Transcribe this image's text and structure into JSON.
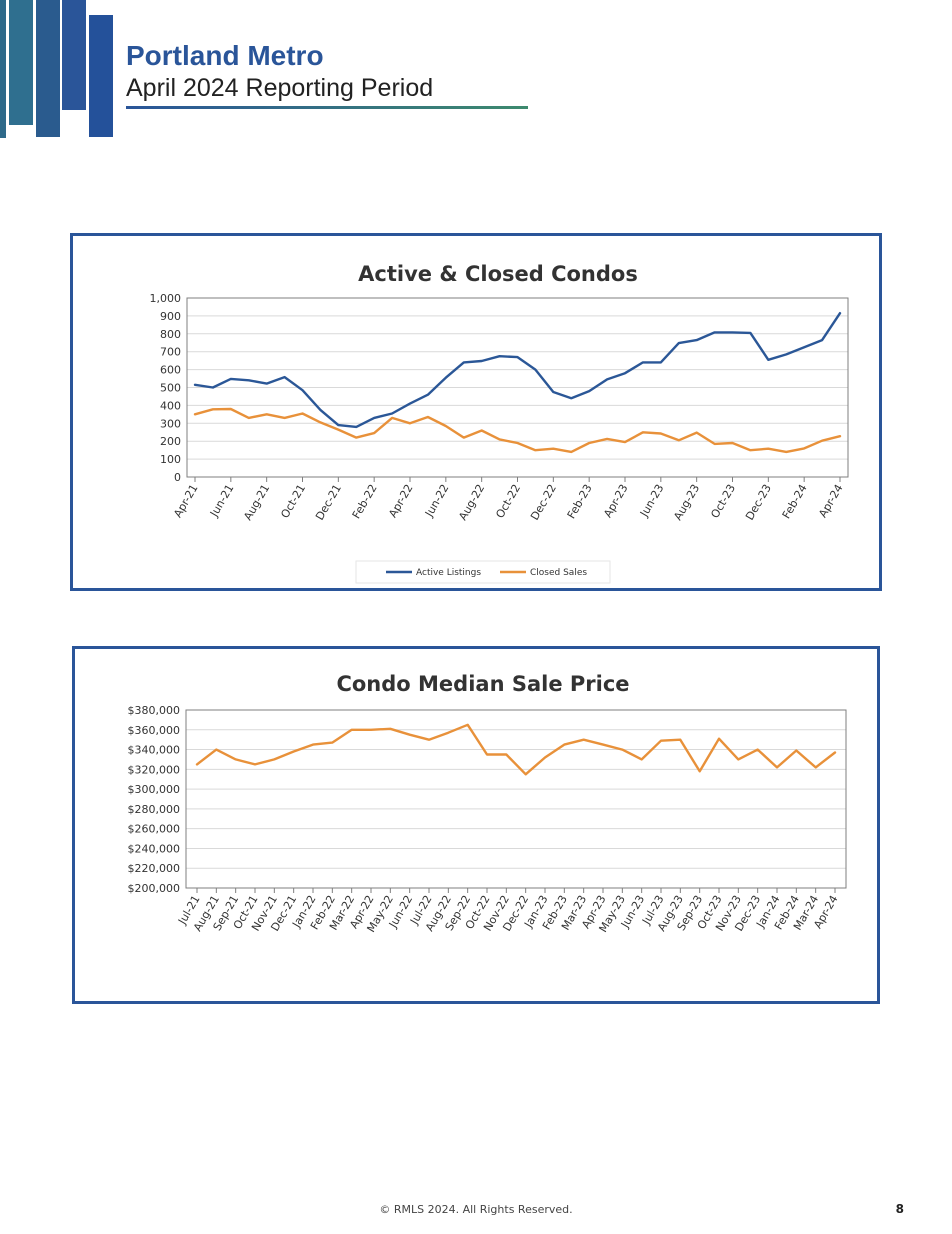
{
  "header": {
    "title": "Portland Metro",
    "subtitle": "April 2024 Reporting Period",
    "colors": {
      "brand": "#2a5599",
      "accent": "#3d8a6e"
    }
  },
  "chart_data": [
    {
      "type": "line",
      "title": "Active & Closed Condos",
      "ylim": [
        0,
        1000
      ],
      "ytick_labels": [
        "0",
        "100",
        "200",
        "300",
        "400",
        "500",
        "600",
        "700",
        "800",
        "900",
        "1,000"
      ],
      "x_tick_labels": [
        "Apr-21",
        "Jun-21",
        "Aug-21",
        "Oct-21",
        "Dec-21",
        "Feb-22",
        "Apr-22",
        "Jun-22",
        "Aug-22",
        "Oct-22",
        "Dec-22",
        "Feb-23",
        "Apr-23",
        "Jun-23",
        "Aug-23",
        "Oct-23",
        "Dec-23",
        "Feb-24",
        "Apr-24"
      ],
      "x": [
        "Apr-21",
        "May-21",
        "Jun-21",
        "Jul-21",
        "Aug-21",
        "Sep-21",
        "Oct-21",
        "Nov-21",
        "Dec-21",
        "Jan-22",
        "Feb-22",
        "Mar-22",
        "Apr-22",
        "May-22",
        "Jun-22",
        "Jul-22",
        "Aug-22",
        "Sep-22",
        "Oct-22",
        "Nov-22",
        "Dec-22",
        "Jan-23",
        "Feb-23",
        "Mar-23",
        "Apr-23",
        "May-23",
        "Jun-23",
        "Jul-23",
        "Aug-23",
        "Sep-23",
        "Oct-23",
        "Nov-23",
        "Dec-23",
        "Jan-24",
        "Feb-24",
        "Mar-24",
        "Apr-24"
      ],
      "grid": true,
      "legend": "bottom-center",
      "series": [
        {
          "name": "Active Listings",
          "color": "#2b5797",
          "values": [
            515,
            500,
            548,
            540,
            522,
            558,
            485,
            375,
            290,
            280,
            330,
            355,
            410,
            460,
            555,
            640,
            648,
            675,
            670,
            600,
            475,
            440,
            480,
            545,
            580,
            640,
            640,
            748,
            765,
            808,
            808,
            805,
            655,
            685,
            725,
            765,
            915
          ]
        },
        {
          "name": "Closed Sales",
          "color": "#e8913a",
          "values": [
            350,
            378,
            380,
            330,
            350,
            330,
            355,
            305,
            265,
            220,
            245,
            330,
            300,
            335,
            285,
            220,
            260,
            210,
            190,
            150,
            158,
            140,
            190,
            213,
            195,
            250,
            243,
            205,
            248,
            185,
            190,
            150,
            158,
            140,
            160,
            203,
            228
          ]
        }
      ]
    },
    {
      "type": "line",
      "title": "Condo Median Sale Price",
      "ylim": [
        200000,
        380000
      ],
      "ytick_labels": [
        "$200,000",
        "$220,000",
        "$240,000",
        "$260,000",
        "$280,000",
        "$300,000",
        "$320,000",
        "$340,000",
        "$360,000",
        "$380,000"
      ],
      "x": [
        "Jul-21",
        "Aug-21",
        "Sep-21",
        "Oct-21",
        "Nov-21",
        "Dec-21",
        "Jan-22",
        "Feb-22",
        "Mar-22",
        "Apr-22",
        "May-22",
        "Jun-22",
        "Jul-22",
        "Aug-22",
        "Sep-22",
        "Oct-22",
        "Nov-22",
        "Dec-22",
        "Jan-23",
        "Feb-23",
        "Mar-23",
        "Apr-23",
        "May-23",
        "Jun-23",
        "Jul-23",
        "Aug-23",
        "Sep-23",
        "Oct-23",
        "Nov-23",
        "Dec-23",
        "Jan-24",
        "Feb-24",
        "Mar-24",
        "Apr-24"
      ],
      "grid": true,
      "series": [
        {
          "color": "#e8913a",
          "values": [
            325000,
            340000,
            330000,
            325000,
            330000,
            338000,
            345000,
            347000,
            360000,
            360000,
            361000,
            355000,
            350000,
            357000,
            365000,
            335000,
            335000,
            315000,
            332000,
            345000,
            350000,
            345000,
            340000,
            330000,
            349000,
            350000,
            318000,
            351000,
            330000,
            340000,
            322000,
            339000,
            322000,
            337000
          ]
        }
      ]
    }
  ],
  "footer": {
    "copyright": "© RMLS 2024. All Rights Reserved.",
    "page_number": "8"
  }
}
